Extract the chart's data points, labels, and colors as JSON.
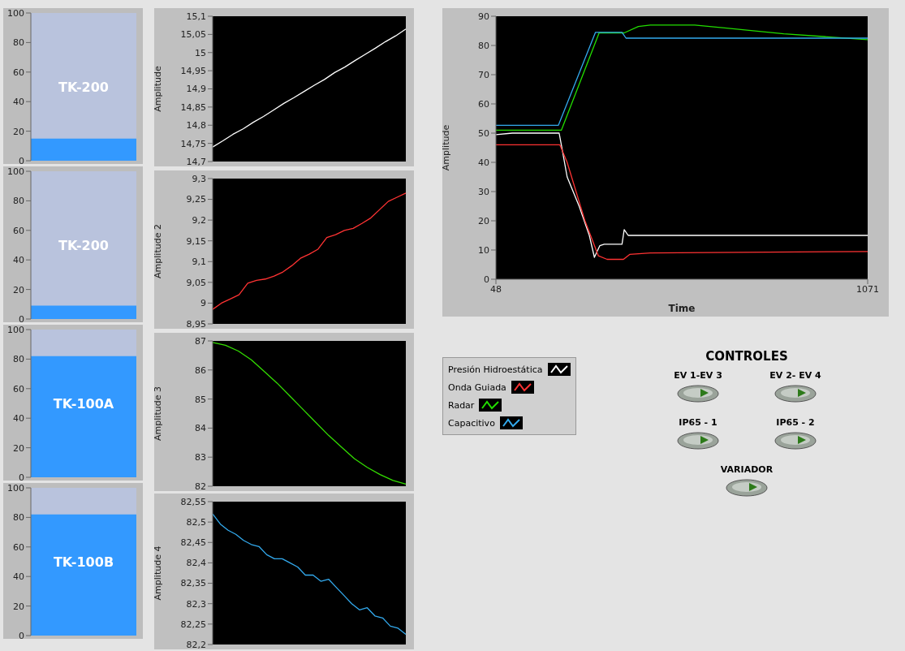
{
  "chart_data": [
    {
      "type": "bar",
      "title": "TK-200",
      "categories": [
        null
      ],
      "values": [
        15
      ],
      "color": "#3399ff",
      "ylim": [
        0,
        100
      ],
      "yticks": [
        0,
        20,
        40,
        60,
        80,
        100
      ],
      "tick_labels": "y"
    },
    {
      "type": "bar",
      "title": "TK-200",
      "categories": [
        null
      ],
      "values": [
        9
      ],
      "color": "#3399ff",
      "ylim": [
        0,
        100
      ],
      "yticks": [
        0,
        20,
        40,
        60,
        80,
        100
      ],
      "tick_labels": "y"
    },
    {
      "type": "bar",
      "title": "TK-100A",
      "categories": [
        null
      ],
      "values": [
        82
      ],
      "color": "#3399ff",
      "ylim": [
        0,
        100
      ],
      "yticks": [
        0,
        20,
        40,
        60,
        80,
        100
      ],
      "tick_labels": "y"
    },
    {
      "type": "bar",
      "title": "TK-100B",
      "categories": [
        null
      ],
      "values": [
        82
      ],
      "color": "#3399ff",
      "ylim": [
        0,
        100
      ],
      "yticks": [
        0,
        20,
        40,
        60,
        80,
        100
      ],
      "tick_labels": "y"
    },
    {
      "type": "line",
      "ylabel": "Amplitude",
      "categories": [
        null,
        null,
        null,
        null,
        null,
        null,
        null,
        null,
        null,
        null,
        null,
        null,
        null,
        null,
        null,
        null,
        null,
        null,
        null,
        null
      ],
      "values": [
        14.74,
        14.757,
        14.775,
        14.79,
        14.808,
        14.824,
        14.842,
        14.86,
        14.876,
        14.893,
        14.91,
        14.926,
        14.945,
        14.96,
        14.978,
        14.995,
        15.012,
        15.03,
        15.046,
        15.065
      ],
      "color": "#ffffff",
      "ylim": [
        14.7,
        15.1
      ],
      "yticks": [
        {
          "value": 14.7,
          "label": "14,7"
        },
        {
          "value": 14.75,
          "label": "14,75"
        },
        {
          "value": 14.8,
          "label": "14,8"
        },
        {
          "value": 14.85,
          "label": "14,85"
        },
        {
          "value": 14.9,
          "label": "14,9"
        },
        {
          "value": 14.95,
          "label": "14,95"
        },
        15,
        {
          "value": 15.05,
          "label": "15,05"
        },
        {
          "value": 15.1,
          "label": "15,1"
        }
      ],
      "tick_labels": "y"
    },
    {
      "type": "line",
      "ylabel": "Amplitude 2",
      "categories": [
        null,
        null,
        null,
        null,
        null,
        null,
        null,
        null,
        null,
        null,
        null,
        null,
        null,
        null,
        null,
        null,
        null,
        null,
        null,
        null,
        null,
        null,
        null
      ],
      "values": [
        8.985,
        9.0,
        9.01,
        9.02,
        9.048,
        9.055,
        9.058,
        9.065,
        9.075,
        9.09,
        9.108,
        9.118,
        9.13,
        9.158,
        9.165,
        9.175,
        9.18,
        9.192,
        9.205,
        9.225,
        9.245,
        9.255,
        9.265
      ],
      "color": "#ff3333",
      "ylim": [
        8.95,
        9.3
      ],
      "yticks": [
        {
          "value": 8.95,
          "label": "8,95"
        },
        9,
        {
          "value": 9.05,
          "label": "9,05"
        },
        {
          "value": 9.1,
          "label": "9,1"
        },
        {
          "value": 9.15,
          "label": "9,15"
        },
        {
          "value": 9.2,
          "label": "9,2"
        },
        {
          "value": 9.25,
          "label": "9,25"
        },
        {
          "value": 9.3,
          "label": "9,3"
        }
      ],
      "tick_labels": "y"
    },
    {
      "type": "line",
      "ylabel": "Amplitude 3",
      "categories": [
        null,
        null,
        null,
        null,
        null,
        null,
        null,
        null,
        null,
        null,
        null,
        null,
        null,
        null,
        null,
        null
      ],
      "values": [
        86.95,
        86.85,
        86.65,
        86.35,
        85.95,
        85.55,
        85.1,
        84.65,
        84.2,
        83.75,
        83.35,
        82.95,
        82.65,
        82.4,
        82.2,
        82.07
      ],
      "color": "#33dd00",
      "ylim": [
        82,
        87
      ],
      "yticks": [
        82,
        83,
        84,
        85,
        86,
        87
      ],
      "tick_labels": "y"
    },
    {
      "type": "line",
      "ylabel": "Amplitude 4",
      "categories": [
        null,
        null,
        null,
        null,
        null,
        null,
        null,
        null,
        null,
        null,
        null,
        null,
        null,
        null,
        null,
        null,
        null,
        null,
        null,
        null,
        null,
        null,
        null,
        null,
        null,
        null
      ],
      "values": [
        82.52,
        82.495,
        82.48,
        82.47,
        82.455,
        82.445,
        82.44,
        82.42,
        82.41,
        82.41,
        82.4,
        82.39,
        82.37,
        82.37,
        82.355,
        82.36,
        82.34,
        82.32,
        82.3,
        82.285,
        82.29,
        82.27,
        82.265,
        82.245,
        82.24,
        82.225
      ],
      "color": "#33aaee",
      "ylim": [
        82.2,
        82.55
      ],
      "yticks": [
        {
          "value": 82.2,
          "label": "82,2"
        },
        {
          "value": 82.25,
          "label": "82,25"
        },
        {
          "value": 82.3,
          "label": "82,3"
        },
        {
          "value": 82.35,
          "label": "82,35"
        },
        {
          "value": 82.4,
          "label": "82,4"
        },
        {
          "value": 82.45,
          "label": "82,45"
        },
        {
          "value": 82.5,
          "label": "82,5"
        },
        {
          "value": 82.55,
          "label": "82,55"
        }
      ],
      "tick_labels": "y"
    },
    {
      "type": "line",
      "xlabel": "Time",
      "ylabel": "Amplitude",
      "xlim": [
        48,
        1071
      ],
      "xticks": [
        48,
        1071
      ],
      "ylim": [
        0,
        90
      ],
      "yticks": [
        0,
        10,
        20,
        30,
        40,
        50,
        60,
        70,
        80,
        90
      ],
      "legend": "bottom",
      "series": [
        {
          "name": "Presión Hidroestática",
          "color": "#ffffff",
          "x": [
            48,
            93,
            222,
            228,
            244,
            277,
            305,
            319,
            334,
            346,
            395,
            401,
            412,
            1071
          ],
          "values": [
            49.5,
            50,
            50,
            46,
            35,
            25,
            15,
            7.5,
            11.5,
            12,
            12,
            17,
            15,
            15
          ]
        },
        {
          "name": "Onda Guiada",
          "color": "#ff3333",
          "x": [
            48,
            224,
            244,
            293,
            330,
            354,
            399,
            416,
            473,
            1071
          ],
          "values": [
            46,
            46,
            40,
            20,
            8,
            6.8,
            6.8,
            8.5,
            9,
            9.5
          ]
        },
        {
          "name": "Radar",
          "color": "#22dd00",
          "x": [
            48,
            228,
            332,
            401,
            440,
            473,
            595,
            677,
            840,
            1071
          ],
          "values": [
            51,
            51,
            84.3,
            84.3,
            86.5,
            87,
            87,
            86,
            84,
            82
          ]
        },
        {
          "name": "Capacitivo",
          "color": "#33aaee",
          "x": [
            48,
            220,
            322,
            395,
            406,
            1071
          ],
          "values": [
            52.7,
            52.7,
            84.5,
            84.5,
            82.5,
            82.5
          ]
        }
      ]
    },
    {
      "type": "other",
      "title": "CONTROLES",
      "annotations": [
        "EV 1-EV 3",
        "EV 2- EV 4",
        "IP65 - 1",
        "IP65 - 2",
        "VARIADOR"
      ]
    }
  ]
}
